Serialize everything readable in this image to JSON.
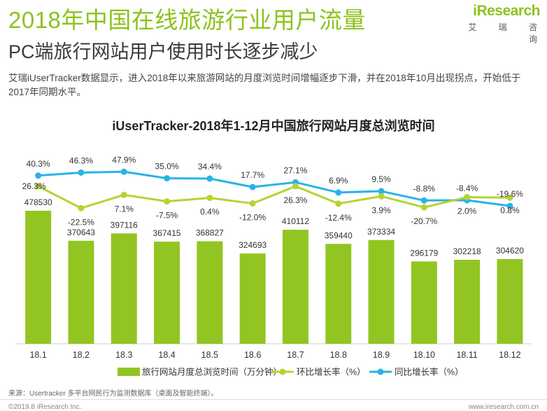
{
  "header": {
    "title": "2018年中国在线旅游行业用户流量",
    "subtitle": "PC端旅行网站用户使用时长逐步减少",
    "description": "艾瑞iUserTracker数据显示，进入2018年以来旅游网站的月度浏览时间增幅逐步下滑，并在2018年10月出现拐点，开始低于2017年同期水平。"
  },
  "logo": {
    "brand_i": "i",
    "brand_rest": "Research",
    "sub": "艾 瑞 咨 询"
  },
  "footer": {
    "source": "来源：Usertracker 多平台网民行为监测数据库（桌面及智能终端）。",
    "copyright": "©2019.8 iResearch Inc.",
    "url": "www.iresearch.com.cn"
  },
  "colors": {
    "bar": "#92c521",
    "mom_line": "#b5d334",
    "yoy_line": "#29b3e6",
    "title_green": "#8dc21f"
  },
  "chart_data": {
    "type": "bar",
    "title": "iUserTracker-2018年1-12月中国旅行网站月度总浏览时间",
    "categories": [
      "18.1",
      "18.2",
      "18.3",
      "18.4",
      "18.5",
      "18.6",
      "18.7",
      "18.8",
      "18.9",
      "18.10",
      "18.11",
      "18.12"
    ],
    "series": [
      {
        "name": "旅行网站月度总浏览时间（万分钟）",
        "type": "bar",
        "values": [
          478530,
          370643,
          397116,
          367415,
          368827,
          324693,
          410112,
          359440,
          373334,
          296179,
          302218,
          304620
        ],
        "labels": [
          "478530",
          "370643",
          "397116",
          "367415",
          "368827",
          "324693",
          "410112",
          "359440",
          "373334",
          "296179",
          "302218",
          "304620"
        ]
      },
      {
        "name": "环比增长率（%）",
        "type": "line",
        "values": [
          26.3,
          -22.5,
          7.1,
          -7.5,
          0.4,
          -12.0,
          26.3,
          -12.4,
          3.9,
          -20.7,
          2.0,
          0.8
        ],
        "labels": [
          "26.3%",
          "-22.5%",
          "7.1%",
          "-7.5%",
          "0.4%",
          "-12.0%",
          "26.3%",
          "-12.4%",
          "3.9%",
          "-20.7%",
          "2.0%",
          "0.8%"
        ]
      },
      {
        "name": "同比增长率（%）",
        "type": "line",
        "values": [
          40.3,
          46.3,
          47.9,
          35.0,
          34.4,
          17.7,
          27.1,
          6.9,
          9.5,
          -8.8,
          -8.4,
          -19.6
        ],
        "labels": [
          "40.3%",
          "46.3%",
          "47.9%",
          "35.0%",
          "34.4%",
          "17.7%",
          "27.1%",
          "6.9%",
          "9.5%",
          "-8.8%",
          "-8.4%",
          "-19.6%"
        ]
      }
    ],
    "legend_position": "bottom",
    "grid": false
  }
}
